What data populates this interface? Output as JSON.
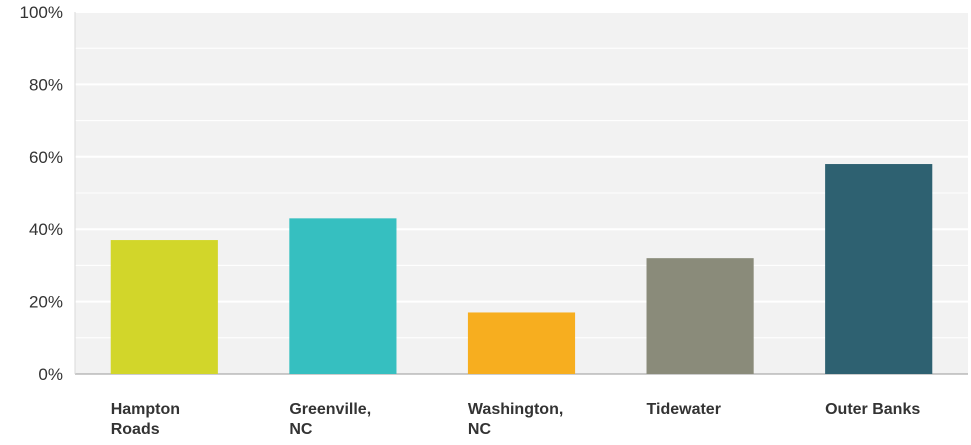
{
  "chart_data": {
    "type": "bar",
    "title": "",
    "xlabel": "",
    "ylabel": "",
    "categories": [
      [
        "Hampton",
        "Roads"
      ],
      [
        "Greenville,",
        "NC"
      ],
      [
        "Washington,",
        "NC"
      ],
      [
        "Tidewater"
      ],
      [
        "Outer Banks"
      ]
    ],
    "values": [
      37,
      43,
      17,
      32,
      58
    ],
    "colors": [
      "#d2d62a",
      "#36bfc0",
      "#f7ae1f",
      "#8a8b7a",
      "#2e6171"
    ],
    "ylim": [
      0,
      100
    ],
    "yticks": [
      0,
      20,
      40,
      60,
      80,
      100
    ],
    "ytick_labels": [
      "0%",
      "20%",
      "40%",
      "60%",
      "80%",
      "100%"
    ],
    "grid": true,
    "minor_grid": true,
    "plot_background": "#f2f2f2"
  }
}
